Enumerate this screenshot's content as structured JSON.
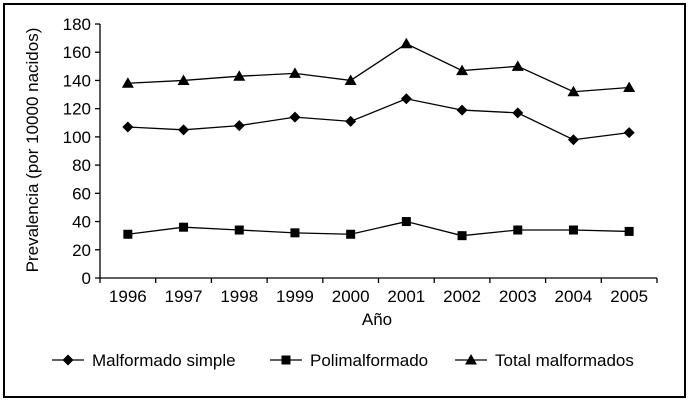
{
  "chart_data": {
    "type": "line",
    "categories": [
      "1996",
      "1997",
      "1998",
      "1999",
      "2000",
      "2001",
      "2002",
      "2003",
      "2004",
      "2005"
    ],
    "series": [
      {
        "name": "Malformado simple",
        "marker": "diamond",
        "values": [
          107,
          105,
          108,
          114,
          111,
          127,
          119,
          117,
          98,
          103
        ]
      },
      {
        "name": "Polimalformado",
        "marker": "square",
        "values": [
          31,
          36,
          34,
          32,
          31,
          40,
          30,
          34,
          34,
          33
        ]
      },
      {
        "name": "Total malformados",
        "marker": "triangle",
        "values": [
          138,
          140,
          143,
          145,
          140,
          166,
          147,
          150,
          132,
          135
        ]
      }
    ],
    "xlabel": "Año",
    "ylabel": "Prevalencia (por 10000 nacidos)",
    "ylim": [
      0,
      180
    ],
    "yticks": [
      0,
      20,
      40,
      60,
      80,
      100,
      120,
      140,
      160,
      180
    ],
    "grid": false,
    "legend_position": "bottom",
    "line_color": "#000000"
  }
}
